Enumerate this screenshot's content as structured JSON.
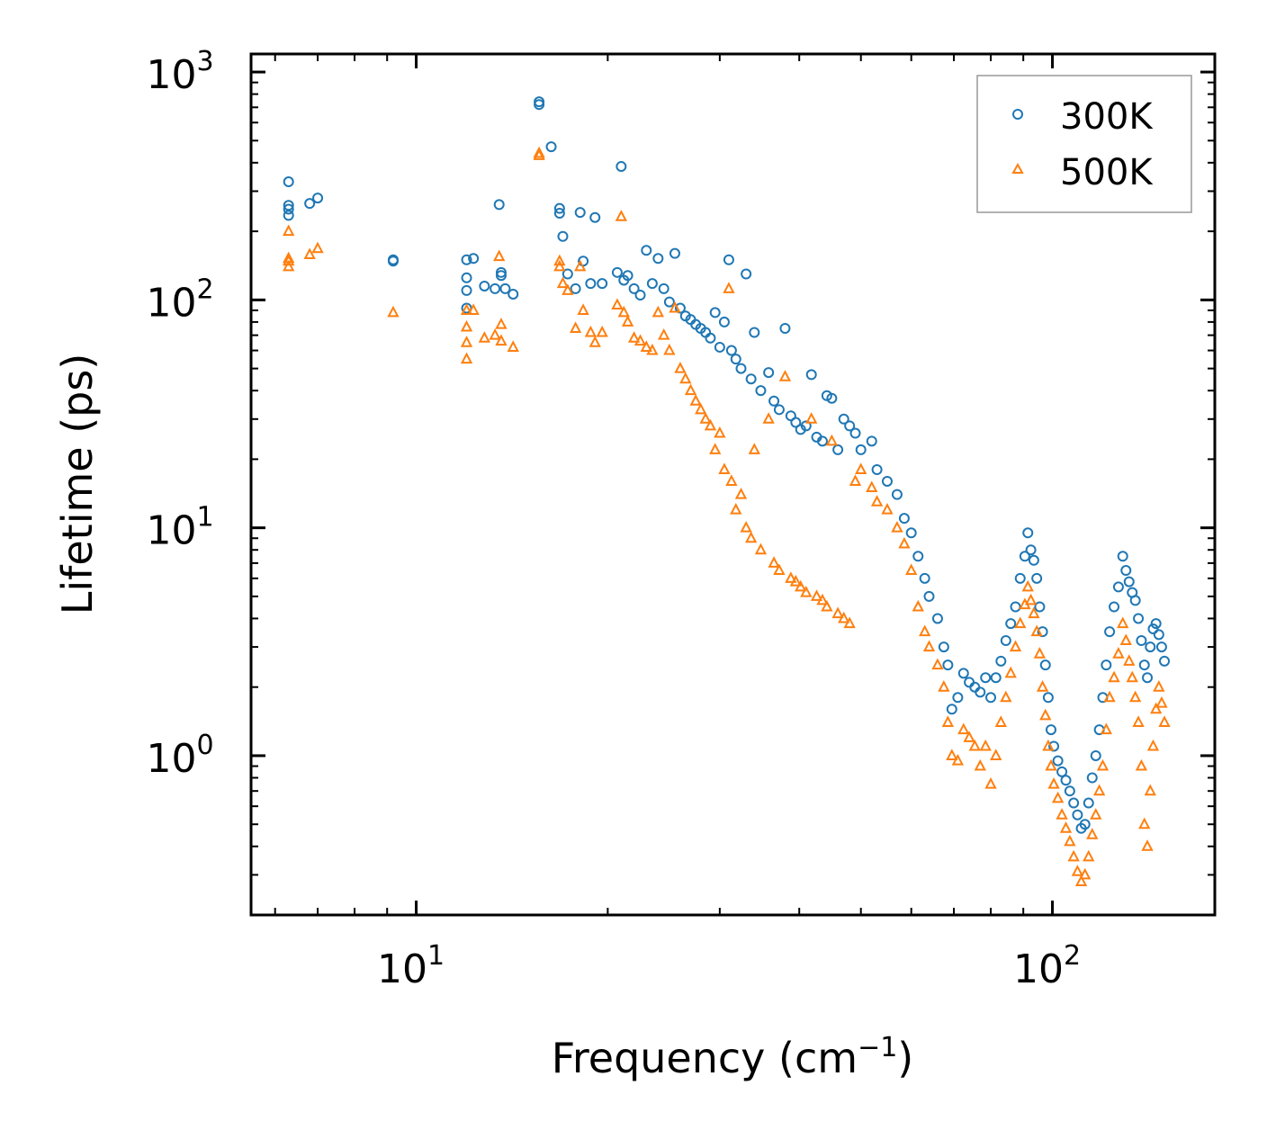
{
  "chart_data": {
    "type": "scatter",
    "x_scale": "log",
    "y_scale": "log",
    "xlim": [
      5.5,
      180
    ],
    "ylim": [
      0.2,
      1200
    ],
    "xlabel": {
      "base": "Frequency (cm",
      "superscript": "−1",
      "suffix": ")"
    },
    "ylabel": "Lifetime (ps)",
    "x_major_ticks": [
      {
        "value": 10,
        "base": "10",
        "exp": "1"
      },
      {
        "value": 100,
        "base": "10",
        "exp": "2"
      }
    ],
    "y_major_ticks": [
      {
        "value": 1,
        "base": "10",
        "exp": "0"
      },
      {
        "value": 10,
        "base": "10",
        "exp": "1"
      },
      {
        "value": 100,
        "base": "10",
        "exp": "2"
      },
      {
        "value": 1000,
        "base": "10",
        "exp": "3"
      }
    ],
    "legend_position": "top-right",
    "series": [
      {
        "name": "300K",
        "marker": "circle",
        "color": "#1f77b4",
        "points": [
          [
            6.3,
            330
          ],
          [
            6.3,
            260
          ],
          [
            6.3,
            250
          ],
          [
            6.3,
            235
          ],
          [
            6.8,
            265
          ],
          [
            7.0,
            280
          ],
          [
            9.2,
            150
          ],
          [
            9.2,
            148
          ],
          [
            12.0,
            150
          ],
          [
            12.0,
            125
          ],
          [
            12.0,
            110
          ],
          [
            12.0,
            92
          ],
          [
            12.3,
            152
          ],
          [
            12.8,
            115
          ],
          [
            13.3,
            112
          ],
          [
            13.5,
            262
          ],
          [
            13.6,
            132
          ],
          [
            13.6,
            128
          ],
          [
            13.8,
            112
          ],
          [
            14.2,
            106
          ],
          [
            15.6,
            740
          ],
          [
            15.6,
            720
          ],
          [
            16.3,
            470
          ],
          [
            16.8,
            240
          ],
          [
            16.8,
            252
          ],
          [
            17.0,
            190
          ],
          [
            17.3,
            130
          ],
          [
            17.8,
            112
          ],
          [
            18.1,
            242
          ],
          [
            18.3,
            148
          ],
          [
            18.8,
            118
          ],
          [
            19.1,
            230
          ],
          [
            19.6,
            118
          ],
          [
            20.7,
            132
          ],
          [
            21.0,
            385
          ],
          [
            21.2,
            122
          ],
          [
            21.5,
            128
          ],
          [
            22.0,
            112
          ],
          [
            22.5,
            105
          ],
          [
            23.0,
            165
          ],
          [
            23.5,
            118
          ],
          [
            24.0,
            152
          ],
          [
            24.5,
            112
          ],
          [
            25.0,
            98
          ],
          [
            25.5,
            160
          ],
          [
            26.0,
            92
          ],
          [
            26.5,
            85
          ],
          [
            27.0,
            82
          ],
          [
            27.5,
            78
          ],
          [
            28.0,
            75
          ],
          [
            28.5,
            72
          ],
          [
            29.0,
            68
          ],
          [
            29.5,
            88
          ],
          [
            30.0,
            62
          ],
          [
            30.5,
            80
          ],
          [
            31.0,
            150
          ],
          [
            31.3,
            60
          ],
          [
            31.8,
            55
          ],
          [
            32.4,
            50
          ],
          [
            33.0,
            130
          ],
          [
            33.6,
            45
          ],
          [
            34.0,
            72
          ],
          [
            34.8,
            40
          ],
          [
            35.8,
            48
          ],
          [
            36.5,
            36
          ],
          [
            37.2,
            33
          ],
          [
            38.0,
            75
          ],
          [
            38.8,
            31
          ],
          [
            39.5,
            29
          ],
          [
            40.2,
            27
          ],
          [
            41.0,
            28
          ],
          [
            41.8,
            47
          ],
          [
            42.6,
            25
          ],
          [
            43.5,
            24
          ],
          [
            44.2,
            38
          ],
          [
            45.0,
            37
          ],
          [
            46.0,
            22
          ],
          [
            47.0,
            30
          ],
          [
            48.0,
            28
          ],
          [
            49.0,
            26
          ],
          [
            50.0,
            22
          ],
          [
            52.0,
            24
          ],
          [
            53.0,
            18
          ],
          [
            55.0,
            16
          ],
          [
            57.0,
            14
          ],
          [
            58.5,
            11
          ],
          [
            60.0,
            9.5
          ],
          [
            61.5,
            7.5
          ],
          [
            63.0,
            6
          ],
          [
            64.0,
            5
          ],
          [
            66.0,
            4
          ],
          [
            67.5,
            3
          ],
          [
            68.5,
            2.5
          ],
          [
            69.5,
            1.6
          ],
          [
            71.0,
            1.8
          ],
          [
            72.5,
            2.3
          ],
          [
            74.0,
            2.1
          ],
          [
            75.5,
            2.0
          ],
          [
            77.0,
            1.9
          ],
          [
            78.5,
            2.2
          ],
          [
            80.0,
            1.8
          ],
          [
            81.5,
            2.2
          ],
          [
            83.0,
            2.6
          ],
          [
            84.5,
            3.2
          ],
          [
            86.0,
            3.8
          ],
          [
            87.5,
            4.5
          ],
          [
            89.0,
            6.0
          ],
          [
            90.5,
            7.5
          ],
          [
            91.5,
            9.5
          ],
          [
            92.5,
            8.0
          ],
          [
            93.5,
            7.2
          ],
          [
            94.5,
            6.0
          ],
          [
            95.5,
            4.5
          ],
          [
            96.5,
            3.5
          ],
          [
            97.5,
            2.5
          ],
          [
            98.5,
            1.8
          ],
          [
            99.5,
            1.3
          ],
          [
            100.5,
            1.1
          ],
          [
            102.0,
            0.95
          ],
          [
            103.5,
            0.85
          ],
          [
            105.0,
            0.78
          ],
          [
            106.5,
            0.7
          ],
          [
            108.0,
            0.62
          ],
          [
            109.5,
            0.55
          ],
          [
            111.0,
            0.48
          ],
          [
            112.5,
            0.5
          ],
          [
            114.0,
            0.62
          ],
          [
            115.5,
            0.8
          ],
          [
            117.0,
            1.0
          ],
          [
            118.5,
            1.3
          ],
          [
            120.0,
            1.8
          ],
          [
            121.5,
            2.5
          ],
          [
            123.0,
            3.5
          ],
          [
            125.0,
            4.5
          ],
          [
            127.0,
            5.5
          ],
          [
            129.0,
            7.5
          ],
          [
            130.5,
            6.5
          ],
          [
            132.0,
            5.8
          ],
          [
            133.5,
            5.2
          ],
          [
            135.0,
            4.8
          ],
          [
            136.5,
            4.0
          ],
          [
            138.0,
            3.2
          ],
          [
            139.5,
            2.5
          ],
          [
            141.0,
            2.2
          ],
          [
            142.5,
            3.0
          ],
          [
            144.0,
            3.6
          ],
          [
            145.5,
            3.8
          ],
          [
            147.0,
            3.4
          ],
          [
            148.5,
            3.0
          ],
          [
            150.0,
            2.6
          ]
        ]
      },
      {
        "name": "500K",
        "marker": "triangle",
        "color": "#ff7f0e",
        "points": [
          [
            6.3,
            200
          ],
          [
            6.3,
            152
          ],
          [
            6.3,
            148
          ],
          [
            6.3,
            140
          ],
          [
            6.8,
            158
          ],
          [
            7.0,
            168
          ],
          [
            9.2,
            88
          ],
          [
            12.0,
            90
          ],
          [
            12.0,
            76
          ],
          [
            12.0,
            65
          ],
          [
            12.0,
            55
          ],
          [
            12.3,
            90
          ],
          [
            12.8,
            68
          ],
          [
            13.3,
            70
          ],
          [
            13.5,
            155
          ],
          [
            13.6,
            78
          ],
          [
            13.6,
            66
          ],
          [
            14.2,
            62
          ],
          [
            15.6,
            440
          ],
          [
            15.6,
            430
          ],
          [
            16.8,
            148
          ],
          [
            16.8,
            140
          ],
          [
            17.0,
            118
          ],
          [
            17.3,
            110
          ],
          [
            17.8,
            75
          ],
          [
            18.1,
            140
          ],
          [
            18.3,
            90
          ],
          [
            18.8,
            72
          ],
          [
            19.1,
            65
          ],
          [
            19.6,
            72
          ],
          [
            20.7,
            95
          ],
          [
            21.0,
            232
          ],
          [
            21.2,
            88
          ],
          [
            21.5,
            80
          ],
          [
            22.0,
            68
          ],
          [
            22.5,
            66
          ],
          [
            23.0,
            62
          ],
          [
            23.5,
            60
          ],
          [
            24.0,
            88
          ],
          [
            24.5,
            70
          ],
          [
            25.0,
            60
          ],
          [
            25.5,
            92
          ],
          [
            26.0,
            50
          ],
          [
            26.5,
            45
          ],
          [
            27.0,
            40
          ],
          [
            27.5,
            36
          ],
          [
            28.0,
            33
          ],
          [
            28.5,
            30
          ],
          [
            29.0,
            28
          ],
          [
            29.5,
            22
          ],
          [
            30.0,
            26
          ],
          [
            30.5,
            18
          ],
          [
            31.0,
            112
          ],
          [
            31.3,
            16
          ],
          [
            31.8,
            12
          ],
          [
            32.4,
            14
          ],
          [
            33.0,
            10
          ],
          [
            33.6,
            9
          ],
          [
            34.0,
            22
          ],
          [
            34.8,
            8
          ],
          [
            35.8,
            30
          ],
          [
            36.5,
            7
          ],
          [
            37.2,
            6.5
          ],
          [
            38.0,
            46
          ],
          [
            38.8,
            6
          ],
          [
            39.5,
            5.8
          ],
          [
            40.2,
            5.5
          ],
          [
            41.0,
            5.2
          ],
          [
            41.8,
            30
          ],
          [
            42.6,
            5
          ],
          [
            43.5,
            4.8
          ],
          [
            44.2,
            4.5
          ],
          [
            45.0,
            24
          ],
          [
            46.0,
            4.2
          ],
          [
            47.0,
            4
          ],
          [
            48.0,
            3.8
          ],
          [
            49.0,
            16
          ],
          [
            50.0,
            18
          ],
          [
            52.0,
            15
          ],
          [
            53.0,
            13
          ],
          [
            55.0,
            12
          ],
          [
            57.0,
            10
          ],
          [
            58.5,
            8.5
          ],
          [
            60.0,
            6.5
          ],
          [
            61.5,
            4.5
          ],
          [
            63.0,
            3.5
          ],
          [
            64.0,
            3
          ],
          [
            66.0,
            2.5
          ],
          [
            67.5,
            2
          ],
          [
            68.5,
            1.4
          ],
          [
            69.5,
            1.0
          ],
          [
            71.0,
            0.95
          ],
          [
            72.5,
            1.3
          ],
          [
            74.0,
            1.2
          ],
          [
            75.5,
            1.1
          ],
          [
            77.0,
            0.9
          ],
          [
            78.5,
            1.1
          ],
          [
            80.0,
            0.75
          ],
          [
            81.5,
            1.0
          ],
          [
            83.0,
            1.4
          ],
          [
            84.5,
            1.8
          ],
          [
            86.0,
            2.3
          ],
          [
            87.5,
            3.0
          ],
          [
            89.0,
            3.8
          ],
          [
            90.5,
            4.6
          ],
          [
            91.5,
            5.5
          ],
          [
            92.5,
            4.8
          ],
          [
            93.5,
            4.2
          ],
          [
            94.5,
            3.5
          ],
          [
            95.5,
            2.8
          ],
          [
            96.5,
            2.0
          ],
          [
            97.5,
            1.5
          ],
          [
            98.5,
            1.1
          ],
          [
            99.5,
            0.9
          ],
          [
            100.5,
            0.75
          ],
          [
            102.0,
            0.65
          ],
          [
            103.5,
            0.55
          ],
          [
            105.0,
            0.48
          ],
          [
            106.5,
            0.42
          ],
          [
            108.0,
            0.36
          ],
          [
            109.5,
            0.31
          ],
          [
            111.0,
            0.28
          ],
          [
            112.5,
            0.3
          ],
          [
            114.0,
            0.36
          ],
          [
            115.5,
            0.45
          ],
          [
            117.0,
            0.55
          ],
          [
            118.5,
            0.7
          ],
          [
            120.0,
            0.9
          ],
          [
            121.5,
            1.3
          ],
          [
            123.0,
            1.8
          ],
          [
            125.0,
            2.2
          ],
          [
            127.0,
            2.8
          ],
          [
            129.0,
            3.8
          ],
          [
            130.5,
            3.2
          ],
          [
            132.0,
            2.6
          ],
          [
            133.5,
            2.2
          ],
          [
            135.0,
            1.8
          ],
          [
            136.5,
            1.4
          ],
          [
            138.0,
            0.9
          ],
          [
            139.5,
            0.5
          ],
          [
            141.0,
            0.4
          ],
          [
            142.5,
            0.7
          ],
          [
            144.0,
            1.1
          ],
          [
            145.5,
            1.6
          ],
          [
            147.0,
            2.0
          ],
          [
            148.5,
            1.7
          ],
          [
            150.0,
            1.4
          ]
        ]
      }
    ]
  }
}
